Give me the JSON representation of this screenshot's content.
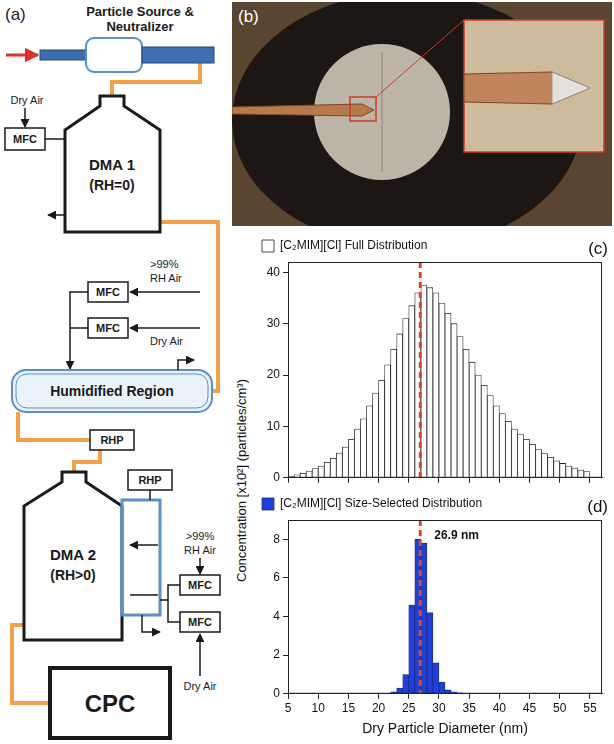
{
  "figure": {
    "a": {
      "letter": "(a)",
      "source": [
        "Particle Source &",
        "Neutralizer"
      ],
      "mfc": "MFC",
      "rhp": "RHP",
      "dma1": [
        "DMA 1",
        "(RH=0)"
      ],
      "dma1_air": "Dry Air",
      "humid_wet": [
        ">99%",
        "RH Air"
      ],
      "humid_dry": "Dry Air",
      "humidified": "Humidified Region",
      "dma2": [
        "DMA 2",
        "(RH>0)"
      ],
      "dma2_wet": [
        ">99%",
        "RH Air"
      ],
      "dma2_dry": "Dry Air",
      "cpc": "CPC"
    },
    "b": {
      "letter": "(b)"
    }
  },
  "chart_data": [
    {
      "type": "histogram",
      "letter": "(c)",
      "bins": [
        5,
        6,
        7,
        8,
        9,
        10,
        11,
        12,
        13,
        14,
        15,
        16,
        17,
        18,
        19,
        20,
        21,
        22,
        23,
        24,
        25,
        26,
        27,
        28,
        29,
        30,
        31,
        32,
        33,
        34,
        35,
        36,
        37,
        38,
        39,
        40,
        41,
        42,
        43,
        44,
        45,
        46,
        47,
        48,
        49,
        50,
        51,
        52,
        53,
        54,
        55
      ],
      "series": [
        {
          "name": "[C₂MIM][Cl] Full Distribution",
          "color": "#ffffff",
          "values": [
            0.3,
            0.6,
            0.9,
            1.3,
            1.8,
            2.3,
            3,
            3.8,
            4.8,
            6,
            7.5,
            9.5,
            11.5,
            14,
            16.5,
            19,
            22,
            25,
            28,
            31,
            33.5,
            36,
            37.5,
            37,
            36,
            34,
            32,
            30,
            27.5,
            25,
            22.5,
            20,
            18,
            16,
            14,
            12.5,
            11,
            9.5,
            8.5,
            7.5,
            6.5,
            5.5,
            4.7,
            4,
            3.3,
            2.8,
            2.3,
            1.9,
            1.5,
            1.2
          ]
        }
      ],
      "xlim": [
        5,
        57
      ],
      "xticks": [
        5,
        10,
        15,
        20,
        25,
        30,
        35,
        40,
        45,
        50,
        55
      ],
      "ylim": [
        0,
        42
      ],
      "yticks": [
        0,
        10,
        20,
        30,
        40
      ],
      "grid": false,
      "legend": "top",
      "tick_labels": "y",
      "reference_line": {
        "x": 26.9,
        "color": "#d9482b",
        "line_style": "dashed"
      }
    },
    {
      "type": "histogram",
      "letter": "(d)",
      "bins": [
        22,
        23,
        24,
        25,
        26,
        27,
        28,
        29,
        30,
        31,
        32,
        33,
        34
      ],
      "series": [
        {
          "name": "[C₂MIM][Cl] Size-Selected Distribution",
          "color": "#1f3fd6",
          "values": [
            0.1,
            0.3,
            1.0,
            4.6,
            8.0,
            7.8,
            4.2,
            1.6,
            0.6,
            0.2,
            0.1,
            0.05
          ]
        }
      ],
      "xlim": [
        5,
        57
      ],
      "xticks": [
        5,
        10,
        15,
        20,
        25,
        30,
        35,
        40,
        45,
        50,
        55
      ],
      "ylim": [
        0,
        9
      ],
      "yticks": [
        0,
        2,
        4,
        6,
        8
      ],
      "xlabel": "Dry Particle Diameter (nm)",
      "ylabel": "Concentration [x10²] (particles/cm³)",
      "grid": false,
      "legend": "top",
      "reference_line": {
        "x": 26.9,
        "color": "#d9482b",
        "line_style": "dashed",
        "label": "26.9 nm"
      }
    }
  ]
}
